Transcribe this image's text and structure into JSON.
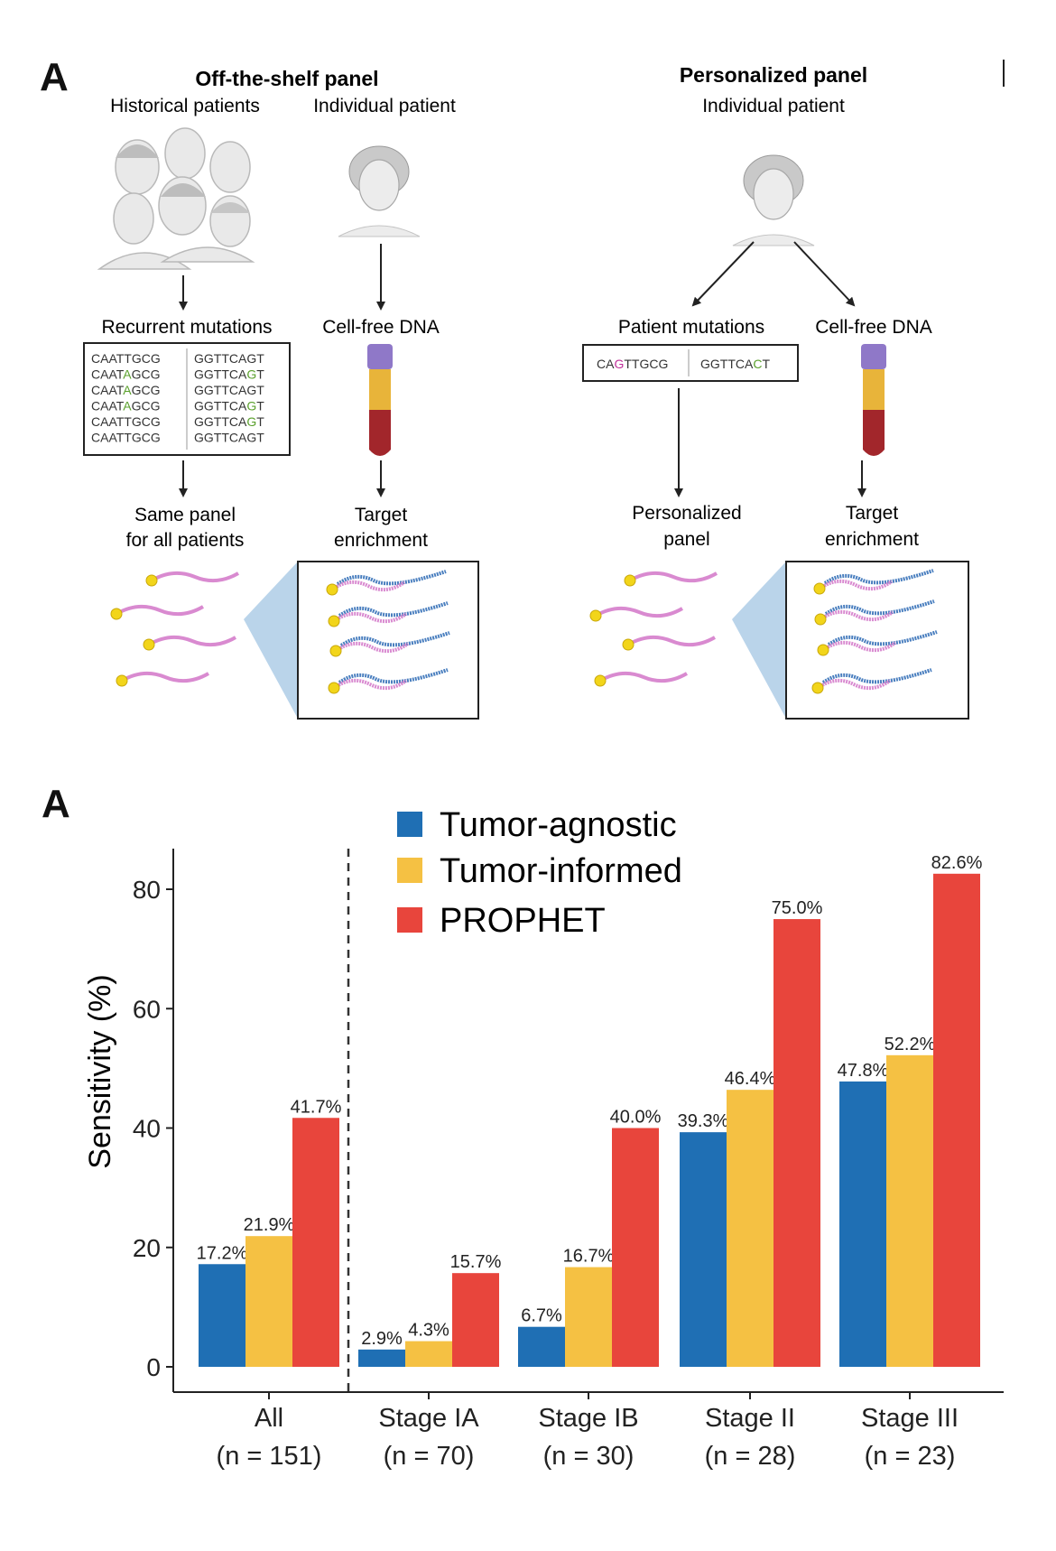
{
  "schematic": {
    "panel_letter": "A",
    "off_shelf": {
      "title": "Off-the-shelf panel",
      "historical_label": "Historical patients",
      "individual_label": "Individual patient",
      "recurrent_label": "Recurrent mutations",
      "cfdna_label": "Cell-free DNA",
      "result_line1": "Same panel",
      "result_line2": "for all patients",
      "target_line1": "Target",
      "target_line2": "enrichment",
      "sequences": [
        {
          "left_a": "CAATTGCG",
          "left_b": "",
          "left_c": "",
          "right_a": "GGTTCAGT",
          "right_b": "",
          "right_c": ""
        },
        {
          "left_a": "CAAT",
          "left_b": "A",
          "left_c": "GCG",
          "right_a": "GGTTCA",
          "right_b": "G",
          "right_c": "T"
        },
        {
          "left_a": "CAAT",
          "left_b": "A",
          "left_c": "GCG",
          "right_a": "GGTTCAGT",
          "right_b": "",
          "right_c": ""
        },
        {
          "left_a": "CAAT",
          "left_b": "A",
          "left_c": "GCG",
          "right_a": "GGTTCA",
          "right_b": "G",
          "right_c": "T"
        },
        {
          "left_a": "CAATTGCG",
          "left_b": "",
          "left_c": "",
          "right_a": "GGTTCA",
          "right_b": "G",
          "right_c": "T"
        },
        {
          "left_a": "CAATTGCG",
          "left_b": "",
          "left_c": "",
          "right_a": "GGTTCAGT",
          "right_b": "",
          "right_c": ""
        }
      ]
    },
    "personalized": {
      "title": "Personalized panel",
      "individual_label": "Individual patient",
      "mutations_label": "Patient mutations",
      "cfdna_label": "Cell-free DNA",
      "seq_left_a": "CA",
      "seq_left_b": "G",
      "seq_left_c": "TTGCG",
      "seq_right_a": "GGTTCA",
      "seq_right_b": "C",
      "seq_right_c": "T",
      "result_line1": "Personalized",
      "result_line2": "panel",
      "target_line1": "Target",
      "target_line2": "enrichment"
    },
    "colors": {
      "mutation_green": "#5aa02c",
      "mutation_magenta": "#c0309a",
      "probe_pink": "#d98ad0",
      "dna_blue": "#4a7fbf",
      "bead_yellow": "#f2d51a",
      "tube_cap": "#8f78c8",
      "plasma": "#e8b43a",
      "blood": "#a2262b",
      "zoom_blue": "#aecde6"
    }
  },
  "chart_data": {
    "type": "bar",
    "panel_letter": "A",
    "title": "",
    "xlabel": "",
    "ylabel": "Sensitivity (%)",
    "ylim": [
      0,
      86
    ],
    "yticks": [
      0,
      20,
      40,
      60,
      80
    ],
    "grid": false,
    "legend_position": "top-center",
    "categories": [
      {
        "name": "All",
        "n": "(n = 151)"
      },
      {
        "name": "Stage IA",
        "n": "(n = 70)"
      },
      {
        "name": "Stage IB",
        "n": "(n = 30)"
      },
      {
        "name": "Stage II",
        "n": "(n = 28)"
      },
      {
        "name": "Stage III",
        "n": "(n = 23)"
      }
    ],
    "series": [
      {
        "name": "Tumor-agnostic",
        "color": "#1f6fb4",
        "values": [
          17.2,
          2.9,
          6.7,
          39.3,
          47.8
        ],
        "labels": [
          "17.2%",
          "2.9%",
          "6.7%",
          "39.3%",
          "47.8%"
        ]
      },
      {
        "name": "Tumor-informed",
        "color": "#f5c143",
        "values": [
          21.9,
          4.3,
          16.7,
          46.4,
          52.2
        ],
        "labels": [
          "21.9%",
          "4.3%",
          "16.7%",
          "46.4%",
          "52.2%"
        ]
      },
      {
        "name": "PROPHET",
        "color": "#e8453c",
        "values": [
          41.7,
          15.7,
          40.0,
          75.0,
          82.6
        ],
        "labels": [
          "41.7%",
          "15.7%",
          "40.0%",
          "75.0%",
          "82.6%"
        ]
      }
    ],
    "separator_after": "All"
  }
}
